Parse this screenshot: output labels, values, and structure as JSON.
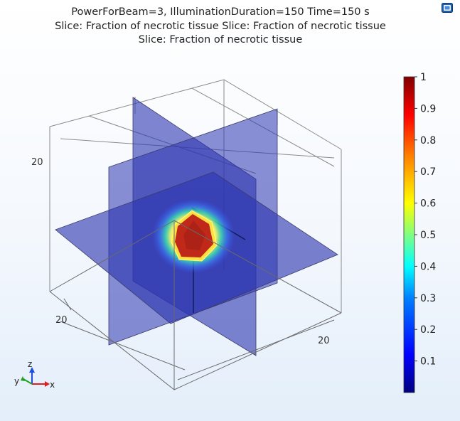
{
  "title": {
    "line1": "PowerForBeam=3, IlluminationDuration=150 Time=150 s",
    "line2": "Slice: Fraction of necrotic tissue  Slice: Fraction of necrotic tissue",
    "line3": "Slice: Fraction of necrotic tissue"
  },
  "toolbar": {
    "icon": "snapshot-icon"
  },
  "colorbar": {
    "min": 0,
    "max": 1,
    "ticks": [
      "1",
      "0.9",
      "0.8",
      "0.7",
      "0.6",
      "0.5",
      "0.4",
      "0.3",
      "0.2",
      "0.1"
    ],
    "colormap": "rainbow",
    "colors": [
      "#000080",
      "#0000ff",
      "#0080ff",
      "#00ffff",
      "#80ff80",
      "#ffff00",
      "#ff8000",
      "#ff0000",
      "#800000"
    ]
  },
  "axes": {
    "tick_z": "20",
    "tick_y": "20",
    "tick_x": "20"
  },
  "triad": {
    "y": "y",
    "z": "z",
    "x": "x"
  },
  "colors": {
    "slice_fill": "#2b35b0",
    "necrotic_core": "#c0281a",
    "box_lines": "#6a6a6a"
  }
}
